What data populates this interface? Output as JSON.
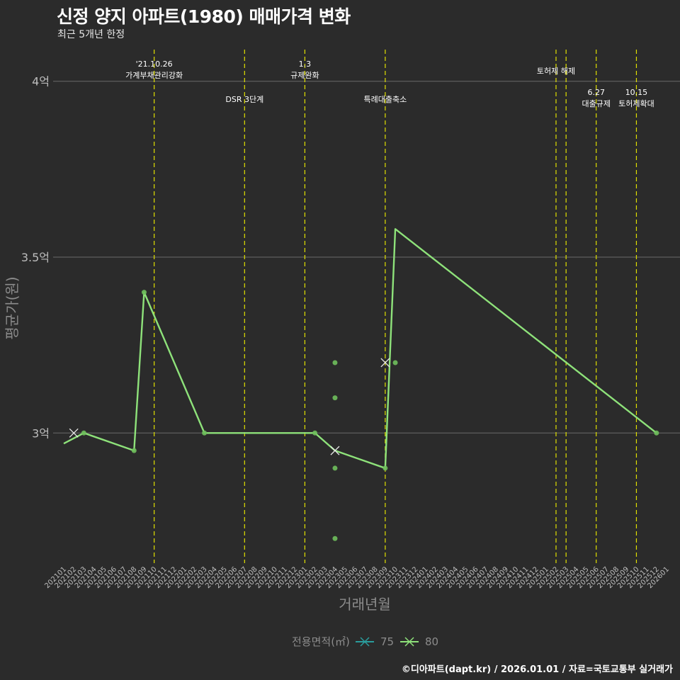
{
  "title": "신정 양지 아파트(1980) 매매가격 변화",
  "subtitle": "최근 5개년 한정",
  "caption": "©디아파트(dapt.kr) / 2026.01.01 / 자료=국토교통부 실거래가",
  "colors": {
    "background": "#2b2b2b",
    "grid": "#6b6b6b",
    "policy_line": "#e0e000",
    "series_75": "#2a9d9d",
    "series_80": "#8ee27a",
    "text": "#ffffff",
    "muted": "#8c8c8c"
  },
  "chart_data": {
    "type": "line",
    "title": "신정 양지 아파트(1980) 매매가격 변화",
    "subtitle": "최근 5개년 한정",
    "xlabel": "거래년월",
    "ylabel": "평균가(원)",
    "ylim": [
      2.63,
      4.08
    ],
    "yticks": [
      {
        "value": 3.0,
        "label": "3억"
      },
      {
        "value": 3.5,
        "label": "3.5억"
      },
      {
        "value": 4.0,
        "label": "4억"
      }
    ],
    "categories": [
      "202101",
      "202102",
      "202103",
      "202104",
      "202105",
      "202106",
      "202107",
      "202108",
      "202109",
      "202110",
      "202111",
      "202112",
      "202201",
      "202202",
      "202203",
      "202204",
      "202205",
      "202206",
      "202207",
      "202208",
      "202209",
      "202210",
      "202211",
      "202212",
      "202301",
      "202302",
      "202303",
      "202304",
      "202305",
      "202306",
      "202307",
      "202308",
      "202309",
      "202310",
      "202311",
      "202312",
      "202401",
      "202402",
      "202403",
      "202404",
      "202405",
      "202406",
      "202407",
      "202408",
      "202409",
      "202410",
      "202411",
      "202412",
      "202501",
      "202502",
      "202503",
      "202504",
      "202505",
      "202506",
      "202507",
      "202508",
      "202509",
      "202510",
      "202511",
      "202512",
      "202601"
    ],
    "legend_title": "전용면적(㎡)",
    "series": [
      {
        "name": "75",
        "line": [],
        "points": []
      },
      {
        "name": "80",
        "line": [
          {
            "x": "202101",
            "y": 2.97
          },
          {
            "x": "202103",
            "y": 3.0
          },
          {
            "x": "202108",
            "y": 2.95
          },
          {
            "x": "202109",
            "y": 3.4
          },
          {
            "x": "202203",
            "y": 3.0
          },
          {
            "x": "202302",
            "y": 3.0
          },
          {
            "x": "202304",
            "y": 2.95
          },
          {
            "x": "202309",
            "y": 2.9
          },
          {
            "x": "202310",
            "y": 3.58
          },
          {
            "x": "202512",
            "y": 3.0
          }
        ],
        "points": [
          {
            "x": "202103",
            "y": 3.0
          },
          {
            "x": "202108",
            "y": 2.95
          },
          {
            "x": "202109",
            "y": 3.4
          },
          {
            "x": "202203",
            "y": 3.0
          },
          {
            "x": "202302",
            "y": 3.0
          },
          {
            "x": "202304",
            "y": 3.2
          },
          {
            "x": "202304",
            "y": 3.1
          },
          {
            "x": "202304",
            "y": 2.9
          },
          {
            "x": "202304",
            "y": 2.7
          },
          {
            "x": "202309",
            "y": 2.9
          },
          {
            "x": "202310",
            "y": 3.2
          },
          {
            "x": "202512",
            "y": 3.0
          }
        ],
        "crosses": [
          {
            "x": "202102",
            "y": 3.0
          },
          {
            "x": "202304",
            "y": 2.95
          },
          {
            "x": "202309",
            "y": 3.2
          }
        ]
      }
    ],
    "policy_events": [
      {
        "month": "202110",
        "lines": [
          "'21.10.26",
          "가계부채관리강화"
        ],
        "level": "top"
      },
      {
        "month": "202207",
        "lines": [
          "DSR 3단계"
        ],
        "level": "mid"
      },
      {
        "month": "202301",
        "lines": [
          "1.3",
          "규제완화"
        ],
        "level": "top"
      },
      {
        "month": "202309",
        "lines": [
          "특례대출축소"
        ],
        "level": "mid"
      },
      {
        "month": "202502",
        "lines": [
          "토허제 해제"
        ],
        "level": "top"
      },
      {
        "month": "202503",
        "lines": [],
        "level": "top"
      },
      {
        "month": "202506",
        "lines": [
          "6.27",
          "대출규제"
        ],
        "level": "low"
      },
      {
        "month": "202510",
        "lines": [
          "10.15",
          "토허제확대"
        ],
        "level": "low"
      }
    ]
  }
}
